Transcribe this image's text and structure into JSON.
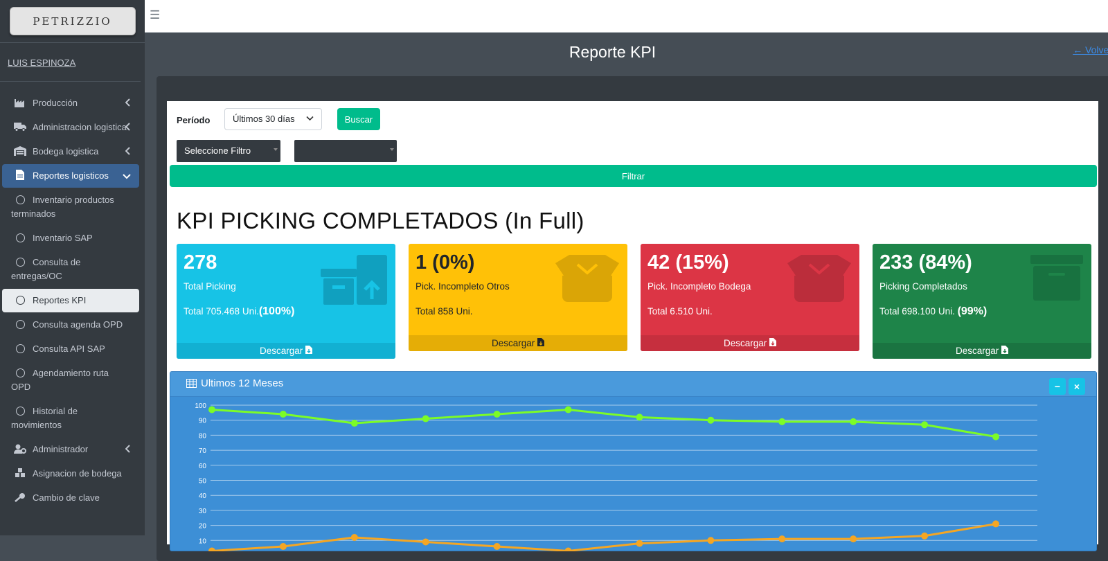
{
  "brand": {
    "logo_text": "PETRIZZIO"
  },
  "user": {
    "name": "LUIS ESPINOZA"
  },
  "sidebar": {
    "items": [
      {
        "label": "Producción",
        "icon": "industry-icon",
        "chevron": "‹"
      },
      {
        "label": "Administracion logistica",
        "icon": "truck-icon",
        "chevron": "‹"
      },
      {
        "label": "Bodega logistica",
        "icon": "warehouse-icon",
        "chevron": "‹"
      },
      {
        "label": "Reportes logisticos",
        "icon": "file-icon",
        "chevron": "⌄"
      },
      {
        "label": "Inventario productos terminados"
      },
      {
        "label": "Inventario SAP"
      },
      {
        "label": "Consulta de entregas/OC"
      },
      {
        "label": "Reportes KPI"
      },
      {
        "label": "Consulta agenda OPD"
      },
      {
        "label": "Consulta API SAP"
      },
      {
        "label": "Agendamiento ruta OPD"
      },
      {
        "label": "Historial de movimientos"
      },
      {
        "label": "Administrador",
        "icon": "user-cog-icon",
        "chevron": "‹"
      },
      {
        "label": "Asignacion de bodega",
        "icon": "cubes-icon"
      },
      {
        "label": "Cambio de clave",
        "icon": "key-icon"
      }
    ]
  },
  "topbar": {
    "menu_icon": "☰"
  },
  "header": {
    "title": "Reporte KPI",
    "back_link": "← Volver"
  },
  "filters": {
    "period_label": "Período",
    "period_value": "Últimos 30 días",
    "search_button": "Buscar",
    "filter_select": "Seleccione Filtro",
    "filter_value": "",
    "filter_button": "Filtrar"
  },
  "kpi": {
    "title": "KPI PICKING COMPLETADOS (In Full)",
    "boxes": [
      {
        "number": "278",
        "label": "Total Picking",
        "total": "Total 705.468 Uni.",
        "total_pct": "(100%)",
        "footer": "Descargar",
        "color": "#17c3e6"
      },
      {
        "number": "1 (0%)",
        "label": "Pick. Incompleto Otros",
        "total": "Total 858 Uni.",
        "total_pct": "",
        "footer": "Descargar",
        "color": "#ffc107"
      },
      {
        "number": "42 (15%)",
        "label": "Pick. Incompleto Bodega",
        "total": "Total 6.510 Uni.",
        "total_pct": "",
        "footer": "Descargar",
        "color": "#dc3545"
      },
      {
        "number": "233 (84%)",
        "label": "Picking Completados",
        "total": "Total 698.100 Uni. ",
        "total_pct": "(99%)",
        "footer": "Descargar",
        "color": "#1e8449"
      }
    ]
  },
  "chart_panel": {
    "title": "Ultimos 12 Meses",
    "collapse": "−",
    "close": "×"
  },
  "chart_data": {
    "type": "line",
    "title": "",
    "xlabel": "",
    "ylabel": "",
    "ylim": [
      0,
      100
    ],
    "yticks": [
      10,
      20,
      30,
      40,
      50,
      60,
      70,
      80,
      90,
      100
    ],
    "grid": true,
    "series": [
      {
        "color": "#7cfc27",
        "values": [
          97,
          94,
          88,
          91,
          94,
          97,
          92,
          90,
          89,
          89,
          87,
          79
        ]
      },
      {
        "color": "#f5a623",
        "values": [
          3,
          6,
          12,
          9,
          6,
          3,
          8,
          10,
          11,
          11,
          13,
          21
        ]
      }
    ]
  }
}
